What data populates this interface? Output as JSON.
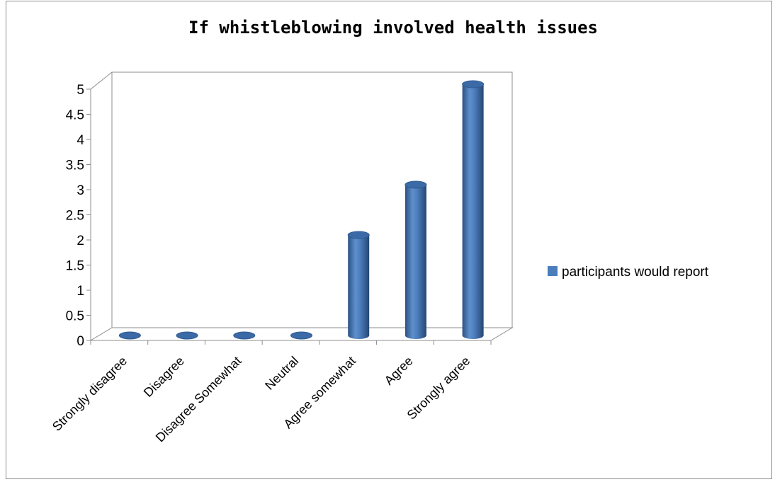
{
  "chart_data": {
    "type": "bar",
    "title": "If whistleblowing involved health issues",
    "categories": [
      "Strongly disagree",
      "Disagree",
      "Disagree Somewhat",
      "Neutral",
      "Agree somewhat",
      "Agree",
      "Strongly agree"
    ],
    "series": [
      {
        "name": "participants would report",
        "values": [
          0,
          0,
          0,
          0,
          2,
          3,
          5
        ],
        "color": "#4a7ebb"
      }
    ],
    "yticks": [
      "0",
      "0.5",
      "1",
      "1.5",
      "2",
      "2.5",
      "3",
      "3.5",
      "4",
      "4.5",
      "5"
    ],
    "ylim": [
      0,
      5
    ],
    "grid": false,
    "legend_position": "right",
    "style": "3d-cylinder"
  }
}
